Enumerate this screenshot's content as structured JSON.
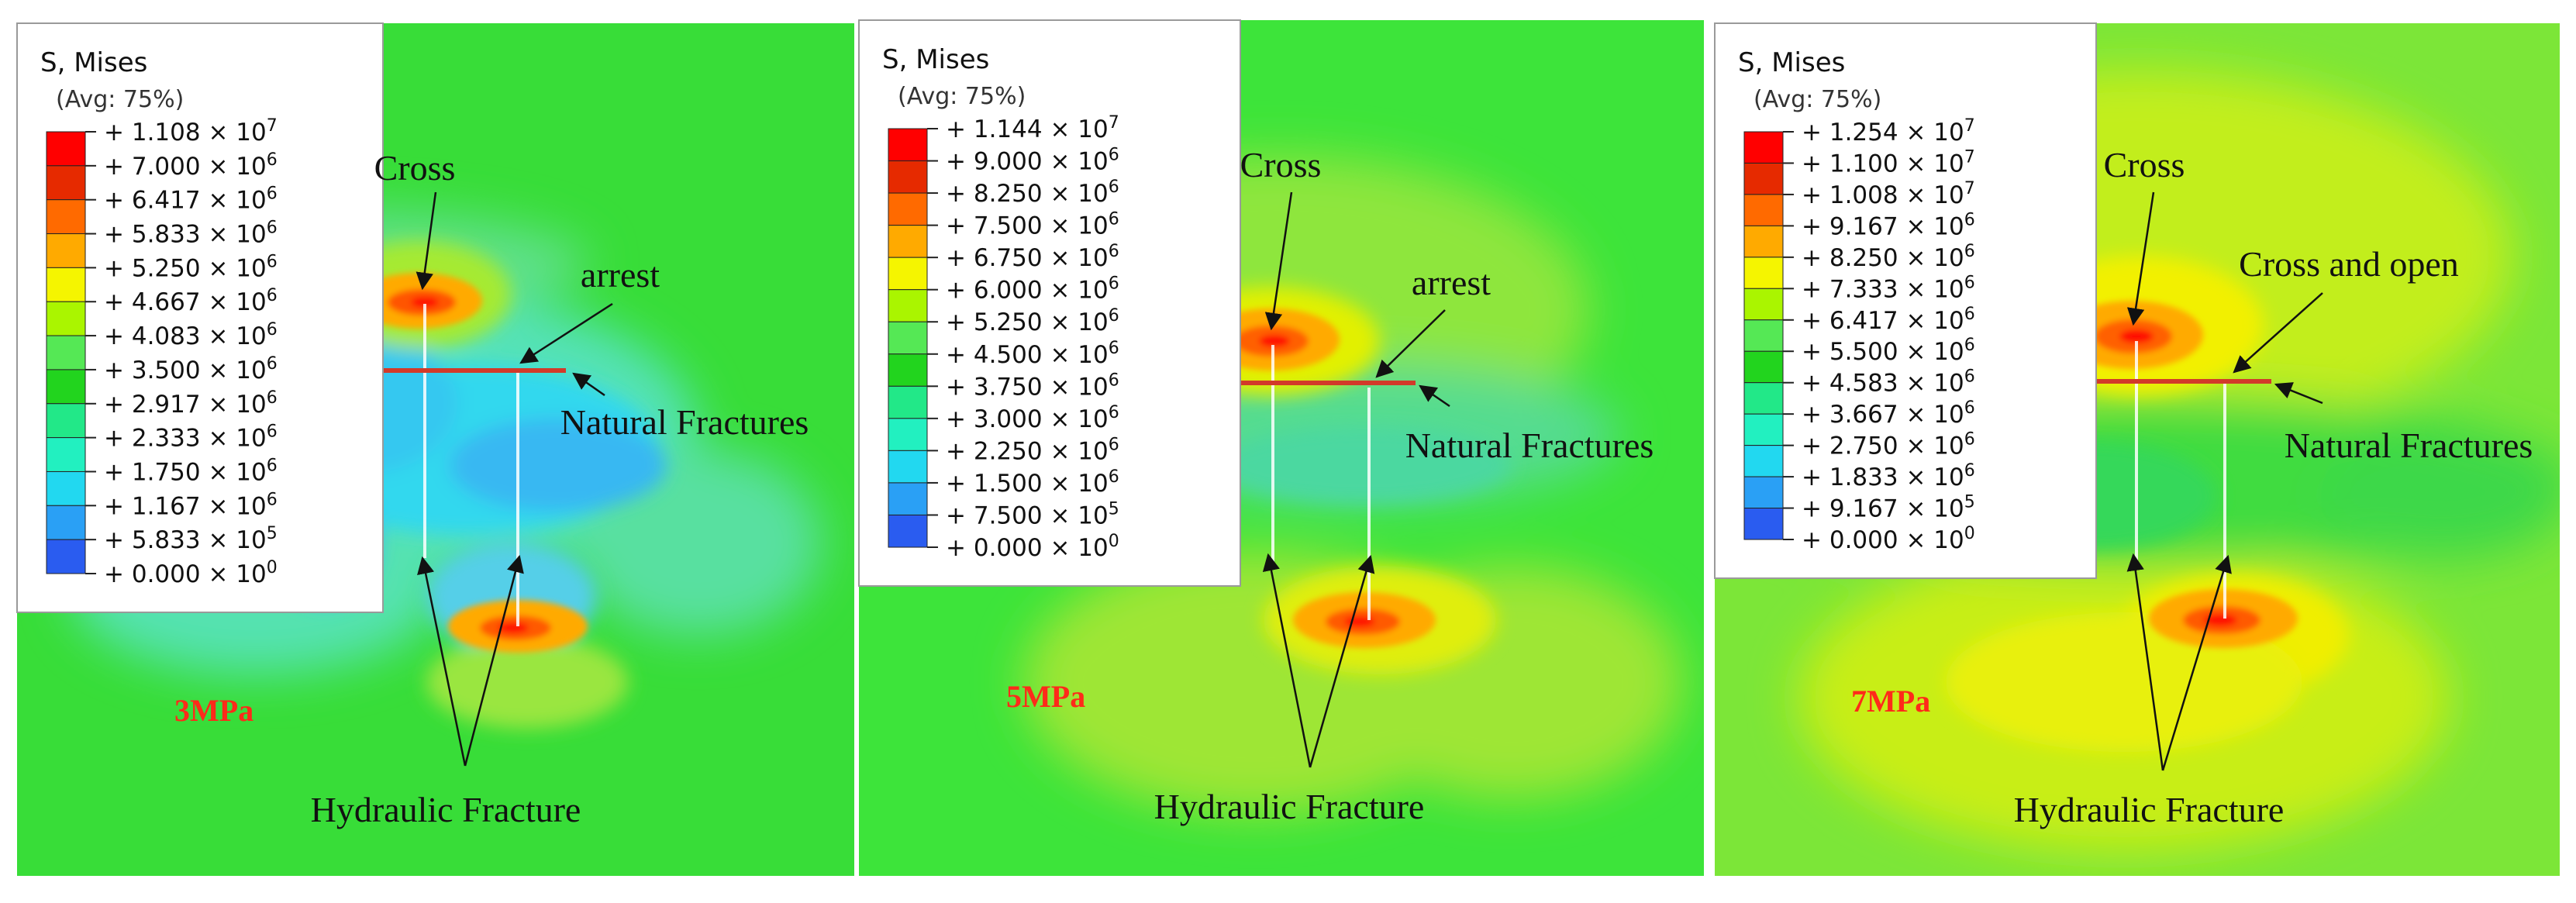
{
  "colors": {
    "background_green": "#33dd33",
    "red_label": "#ff2a1a",
    "natural_fracture": "#d23a2a"
  },
  "legend_palette": [
    "#ff0000",
    "#e62a00",
    "#ff6a00",
    "#ffaa00",
    "#f5f500",
    "#aaf500",
    "#55e855",
    "#22d41e",
    "#22e888",
    "#22f0c0",
    "#22d8f0",
    "#2aa0f5",
    "#2a5cf0",
    "#1a1aff"
  ],
  "panels": [
    {
      "legend": {
        "title": "S, Mises",
        "subtitle": "(Avg: 75%)",
        "entries": [
          {
            "mantissa": "1.108",
            "exponent": "7"
          },
          {
            "mantissa": "7.000",
            "exponent": "6"
          },
          {
            "mantissa": "6.417",
            "exponent": "6"
          },
          {
            "mantissa": "5.833",
            "exponent": "6"
          },
          {
            "mantissa": "5.250",
            "exponent": "6"
          },
          {
            "mantissa": "4.667",
            "exponent": "6"
          },
          {
            "mantissa": "4.083",
            "exponent": "6"
          },
          {
            "mantissa": "3.500",
            "exponent": "6"
          },
          {
            "mantissa": "2.917",
            "exponent": "6"
          },
          {
            "mantissa": "2.333",
            "exponent": "6"
          },
          {
            "mantissa": "1.750",
            "exponent": "6"
          },
          {
            "mantissa": "1.167",
            "exponent": "6"
          },
          {
            "mantissa": "5.833",
            "exponent": "5"
          },
          {
            "mantissa": "0.000",
            "exponent": "0"
          }
        ]
      },
      "label_top": "Cross",
      "label_mid": "arrest",
      "label_nf": "Natural Fractures",
      "label_hf": "Hydraulic Fracture",
      "pressure": "3MPa"
    },
    {
      "legend": {
        "title": "S, Mises",
        "subtitle": "(Avg: 75%)",
        "entries": [
          {
            "mantissa": "1.144",
            "exponent": "7"
          },
          {
            "mantissa": "9.000",
            "exponent": "6"
          },
          {
            "mantissa": "8.250",
            "exponent": "6"
          },
          {
            "mantissa": "7.500",
            "exponent": "6"
          },
          {
            "mantissa": "6.750",
            "exponent": "6"
          },
          {
            "mantissa": "6.000",
            "exponent": "6"
          },
          {
            "mantissa": "5.250",
            "exponent": "6"
          },
          {
            "mantissa": "4.500",
            "exponent": "6"
          },
          {
            "mantissa": "3.750",
            "exponent": "6"
          },
          {
            "mantissa": "3.000",
            "exponent": "6"
          },
          {
            "mantissa": "2.250",
            "exponent": "6"
          },
          {
            "mantissa": "1.500",
            "exponent": "6"
          },
          {
            "mantissa": "7.500",
            "exponent": "5"
          },
          {
            "mantissa": "0.000",
            "exponent": "0"
          }
        ]
      },
      "label_top": "Cross",
      "label_mid": "arrest",
      "label_nf": "Natural Fractures",
      "label_hf": "Hydraulic Fracture",
      "pressure": "5MPa"
    },
    {
      "legend": {
        "title": "S, Mises",
        "subtitle": "(Avg: 75%)",
        "entries": [
          {
            "mantissa": "1.254",
            "exponent": "7"
          },
          {
            "mantissa": "1.100",
            "exponent": "7"
          },
          {
            "mantissa": "1.008",
            "exponent": "7"
          },
          {
            "mantissa": "9.167",
            "exponent": "6"
          },
          {
            "mantissa": "8.250",
            "exponent": "6"
          },
          {
            "mantissa": "7.333",
            "exponent": "6"
          },
          {
            "mantissa": "6.417",
            "exponent": "6"
          },
          {
            "mantissa": "5.500",
            "exponent": "6"
          },
          {
            "mantissa": "4.583",
            "exponent": "6"
          },
          {
            "mantissa": "3.667",
            "exponent": "6"
          },
          {
            "mantissa": "2.750",
            "exponent": "6"
          },
          {
            "mantissa": "1.833",
            "exponent": "6"
          },
          {
            "mantissa": "9.167",
            "exponent": "5"
          },
          {
            "mantissa": "0.000",
            "exponent": "0"
          }
        ]
      },
      "label_top": "Cross",
      "label_mid": "Cross and open",
      "label_nf": "Natural Fractures",
      "label_hf": "Hydraulic Fracture",
      "pressure": "7MPa"
    }
  ]
}
